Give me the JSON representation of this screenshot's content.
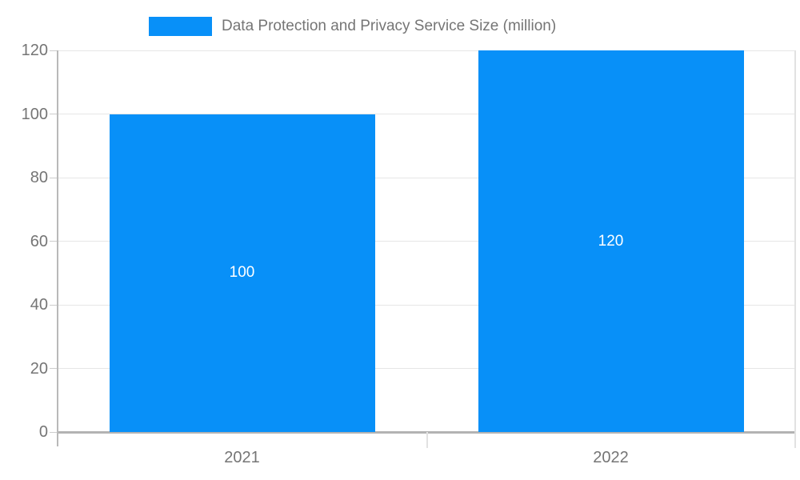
{
  "chart_data": {
    "type": "bar",
    "title": "Data Protection and Privacy Service Size (million)",
    "categories": [
      "2021",
      "2022"
    ],
    "series": [
      {
        "name": "Data Protection and Privacy Service Size (million)",
        "values": [
          100,
          120
        ]
      }
    ],
    "bar_value_labels": [
      "100",
      "120"
    ],
    "xlabel": "",
    "ylabel": "",
    "ylim": [
      0,
      120
    ],
    "yticks": [
      0,
      20,
      40,
      60,
      80,
      100,
      120
    ],
    "ytick_labels": [
      "0",
      "20",
      "40",
      "60",
      "80",
      "100",
      "120"
    ],
    "grid": true,
    "legend_position": "top",
    "colors": {
      "bar": "#0890F8",
      "bar_value_text": "#ffffff",
      "axis_text": "#757575",
      "gridline": "#e6e6e6",
      "axis_line": "#b3b3b3",
      "minor_tick": "#cccccc",
      "right_border": "#e2e2e2",
      "background": "#ffffff"
    }
  },
  "legend": {
    "label": "Data Protection and Privacy Service Size (million)"
  }
}
